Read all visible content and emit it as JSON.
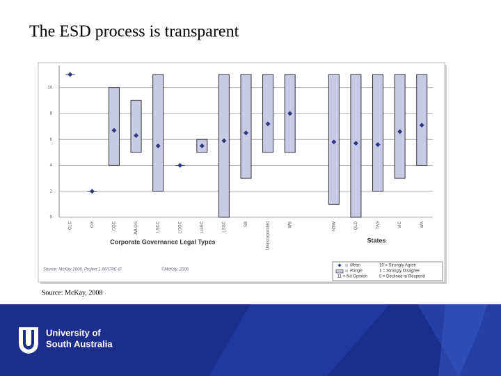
{
  "title": "The ESD process is transparent",
  "caption": "Source: McKay, 2008",
  "footer": {
    "line1": "University of",
    "line2": "South Australia"
  },
  "chart_data": {
    "type": "range",
    "categories": [
      "CLC",
      "CG",
      "CGC",
      "JMLGS",
      "LSCC",
      "LOOC",
      "LGRC",
      "LSSC",
      "SB",
      "Unincorporated",
      "WB",
      null,
      "NSW",
      "QLD",
      "TAS",
      "VIC",
      "WA"
    ],
    "group_labels": [
      "Corporate Governance Legal Types",
      "States"
    ],
    "series": [
      {
        "name": "Mean",
        "color": "#2b3a7e",
        "values": [
          11,
          2,
          6.7,
          6.3,
          5.5,
          4,
          5.5,
          5.9,
          6.5,
          7.2,
          8,
          null,
          5.8,
          5.7,
          5.6,
          6.6,
          7.1
        ]
      },
      {
        "name": "Range",
        "color": "#c8cae6",
        "low": [
          null,
          null,
          4,
          5,
          2,
          null,
          5,
          0,
          3,
          5,
          5,
          null,
          1,
          0,
          2,
          3,
          4
        ],
        "high": [
          null,
          null,
          10,
          9,
          11,
          null,
          6,
          11,
          11,
          11,
          11,
          null,
          11,
          11,
          11,
          11,
          11
        ]
      }
    ],
    "ylim": [
      0,
      11.7
    ],
    "yticks": [
      0,
      2,
      4,
      6,
      8,
      10
    ],
    "grid": true,
    "source": "Source: McKay 2006, Project 1.66/CRC-IF",
    "copyright": "©McKay, 2006",
    "scale_notes": [
      "10 = Strongly Agree",
      "1 = Strongly Disagree",
      "11 = No Opinion",
      "0 = Declined to Respond"
    ]
  }
}
